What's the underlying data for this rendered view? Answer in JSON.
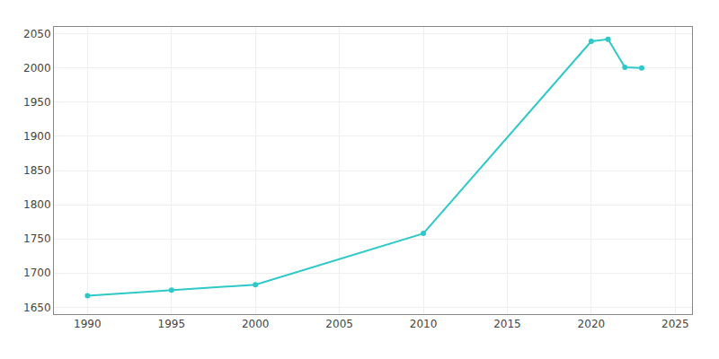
{
  "chart_data": {
    "type": "line",
    "x": [
      1990,
      1995,
      2000,
      2010,
      2020,
      2021,
      2022,
      2023
    ],
    "values": [
      1667,
      1675,
      1683,
      1758,
      2039,
      2042,
      2001,
      2000
    ],
    "color": "#2ec8c8",
    "marker": "circle",
    "xlim": [
      1988,
      2026
    ],
    "ylim": [
      1640,
      2060
    ],
    "xticks": [
      1990,
      1995,
      2000,
      2005,
      2010,
      2015,
      2020,
      2025
    ],
    "yticks": [
      1650,
      1700,
      1750,
      1800,
      1850,
      1900,
      1950,
      2000,
      2050
    ],
    "grid": true
  }
}
